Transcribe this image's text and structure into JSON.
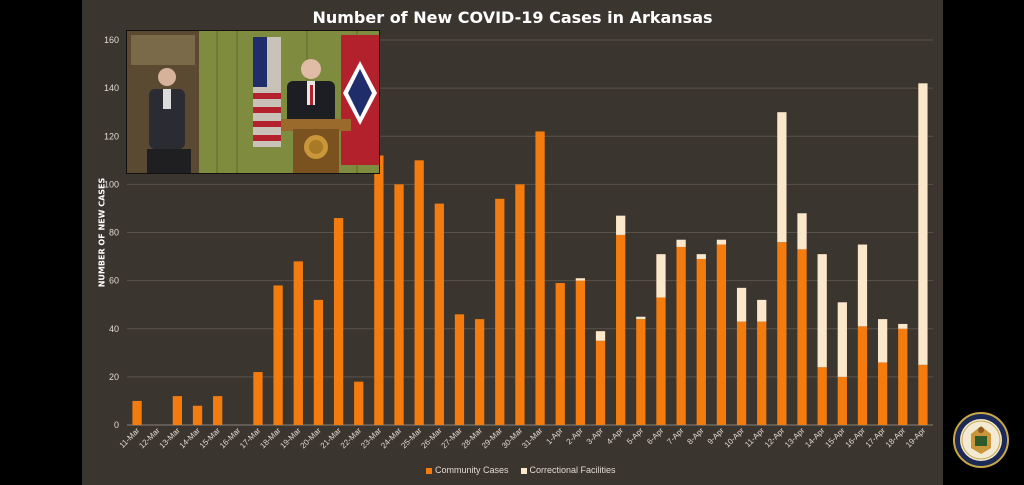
{
  "title": "Number of New COVID-19 Cases in Arkansas",
  "legend": {
    "community": "Community Cases",
    "correctional": "Correctional Facilities"
  },
  "colors": {
    "community": "#f47c0f",
    "correctional": "#fbe7c9",
    "background": "#3b3530",
    "gridline": "#5a524a"
  },
  "inset": {
    "description_icon": "video-feed-icon"
  },
  "seal": {
    "icon": "state-seal-icon"
  },
  "chart_data": {
    "type": "bar",
    "stacked": true,
    "title": "Number of New COVID-19 Cases in Arkansas",
    "xlabel": "",
    "ylabel": "NUMBER OF NEW CASES",
    "ylim": [
      0,
      160
    ],
    "yticks": [
      0,
      20,
      40,
      60,
      80,
      100,
      120,
      140,
      160
    ],
    "grid": true,
    "legend_position": "bottom",
    "categories": [
      "11-Mar",
      "12-Mar",
      "13-Mar",
      "14-Mar",
      "15-Mar",
      "16-Mar",
      "17-Mar",
      "18-Mar",
      "19-Mar",
      "20-Mar",
      "21-Mar",
      "22-Mar",
      "23-Mar",
      "24-Mar",
      "25-Mar",
      "26-Mar",
      "27-Mar",
      "28-Mar",
      "29-Mar",
      "30-Mar",
      "31-Mar",
      "1-Apr",
      "2-Apr",
      "3-Apr",
      "4-Apr",
      "5-Apr",
      "6-Apr",
      "7-Apr",
      "8-Apr",
      "9-Apr",
      "10-Apr",
      "11-Apr",
      "12-Apr",
      "13-Apr",
      "14-Apr",
      "15-Apr",
      "16-Apr",
      "17-Apr",
      "18-Apr",
      "19-Apr"
    ],
    "series": [
      {
        "name": "Community Cases",
        "values": [
          10,
          0,
          12,
          8,
          12,
          0,
          22,
          58,
          68,
          52,
          86,
          18,
          112,
          100,
          110,
          92,
          46,
          44,
          94,
          100,
          122,
          59,
          60,
          35,
          79,
          44,
          53,
          74,
          69,
          75,
          43,
          43,
          76,
          73,
          24,
          20,
          41,
          26,
          40,
          25
        ]
      },
      {
        "name": "Correctional Facilities",
        "values": [
          0,
          0,
          0,
          0,
          0,
          0,
          0,
          0,
          0,
          0,
          0,
          0,
          0,
          0,
          0,
          0,
          0,
          0,
          0,
          0,
          0,
          0,
          1,
          4,
          8,
          1,
          18,
          3,
          2,
          2,
          14,
          9,
          54,
          15,
          47,
          31,
          34,
          18,
          2,
          117
        ]
      }
    ]
  }
}
